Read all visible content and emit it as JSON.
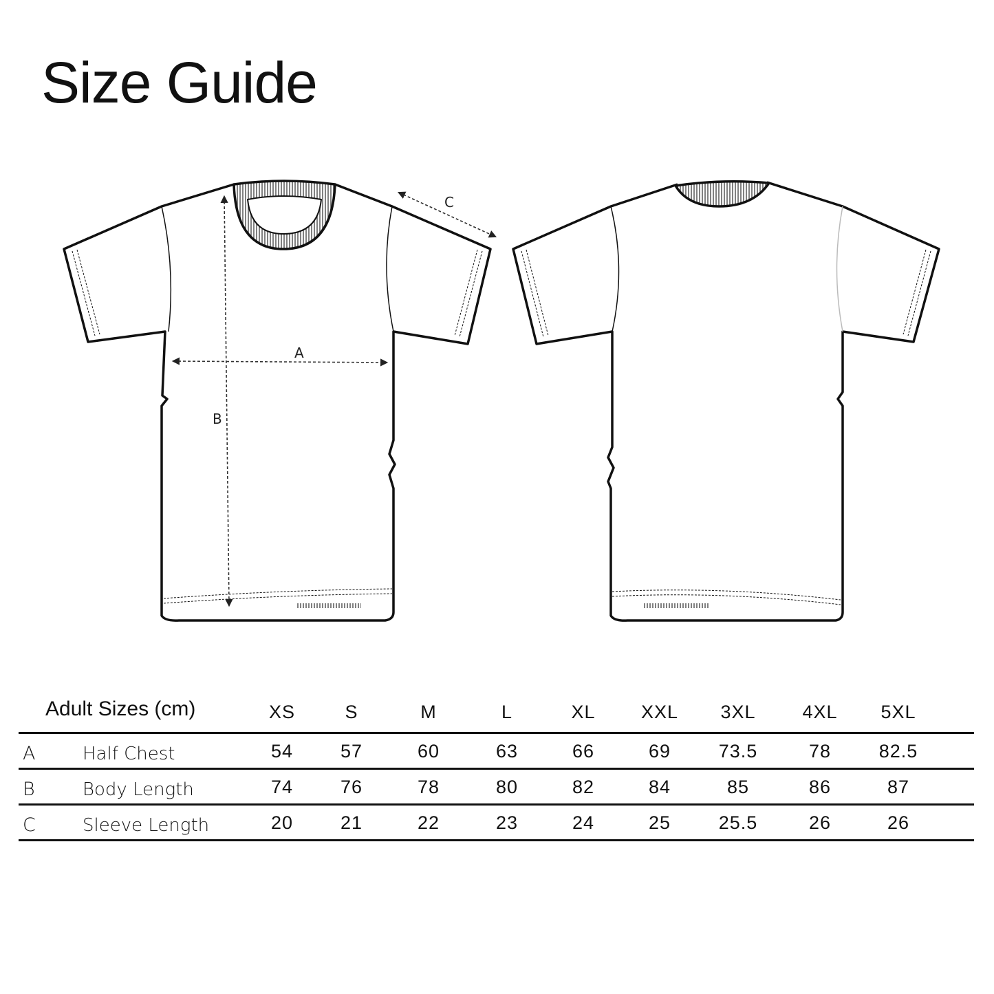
{
  "title": "Size Guide",
  "diagram": {
    "labels": {
      "a": "A",
      "b": "B",
      "c": "C"
    }
  },
  "table": {
    "header_label": "Adult Sizes (cm)",
    "sizes": [
      "XS",
      "S",
      "M",
      "L",
      "XL",
      "XXL",
      "3XL",
      "4XL",
      "5XL"
    ],
    "rows": [
      {
        "key": "A",
        "name": "Half Chest",
        "values": [
          "54",
          "57",
          "60",
          "63",
          "66",
          "69",
          "73.5",
          "78",
          "82.5"
        ]
      },
      {
        "key": "B",
        "name": "Body Length",
        "values": [
          "74",
          "76",
          "78",
          "80",
          "82",
          "84",
          "85",
          "86",
          "87"
        ]
      },
      {
        "key": "C",
        "name": "Sleeve Length",
        "values": [
          "20",
          "21",
          "22",
          "23",
          "24",
          "25",
          "25.5",
          "26",
          "26"
        ]
      }
    ]
  }
}
